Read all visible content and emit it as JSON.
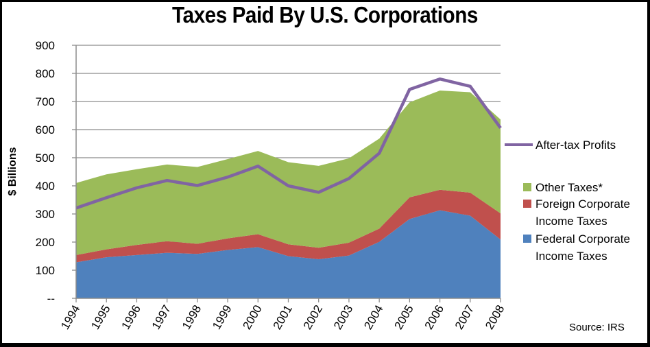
{
  "chart_data": {
    "type": "area",
    "stacked": true,
    "title": "Taxes Paid By U.S. Corporations",
    "xlabel": "",
    "ylabel": "$ Billions",
    "ylim": [
      0,
      900
    ],
    "yticks": [
      0,
      100,
      200,
      300,
      400,
      500,
      600,
      700,
      800,
      900
    ],
    "ytick_labels": [
      "--",
      "100",
      "200",
      "300",
      "400",
      "500",
      "600",
      "700",
      "800",
      "900"
    ],
    "grid": "horizontal",
    "legend_position": "right",
    "categories": [
      "1994",
      "1995",
      "1996",
      "1997",
      "1998",
      "1999",
      "2000",
      "2001",
      "2002",
      "2003",
      "2004",
      "2005",
      "2006",
      "2007",
      "2008"
    ],
    "series": [
      {
        "name": "Federal Corporate Income Taxes",
        "type": "area",
        "color": "#4F81BD",
        "values": [
          128,
          146,
          154,
          162,
          158,
          172,
          182,
          150,
          139,
          152,
          201,
          282,
          313,
          294,
          209
        ]
      },
      {
        "name": "Foreign Corporate Income Taxes",
        "type": "area",
        "color": "#C0504D",
        "values": [
          26,
          28,
          36,
          41,
          36,
          41,
          46,
          42,
          41,
          46,
          47,
          77,
          73,
          82,
          93
        ]
      },
      {
        "name": "Other Taxes*",
        "type": "area",
        "color": "#9BBB59",
        "values": [
          256,
          267,
          269,
          273,
          273,
          282,
          296,
          292,
          291,
          300,
          320,
          338,
          353,
          357,
          334
        ]
      },
      {
        "name": "After-tax Profits",
        "type": "line",
        "color": "#8064A2",
        "values": [
          321,
          358,
          393,
          419,
          401,
          431,
          470,
          400,
          377,
          426,
          516,
          743,
          780,
          754,
          606
        ]
      }
    ],
    "legend": [
      {
        "label_lines": [
          "After-tax Profits"
        ],
        "kind": "line",
        "color": "#8064A2"
      },
      {
        "label_lines": [
          "Other Taxes*"
        ],
        "kind": "box",
        "color": "#9BBB59"
      },
      {
        "label_lines": [
          "Foreign Corporate",
          "Income  Taxes"
        ],
        "kind": "box",
        "color": "#C0504D"
      },
      {
        "label_lines": [
          "Federal Corporate",
          "Income  Taxes"
        ],
        "kind": "box",
        "color": "#4F81BD"
      }
    ],
    "annotation": "Source: IRS"
  }
}
